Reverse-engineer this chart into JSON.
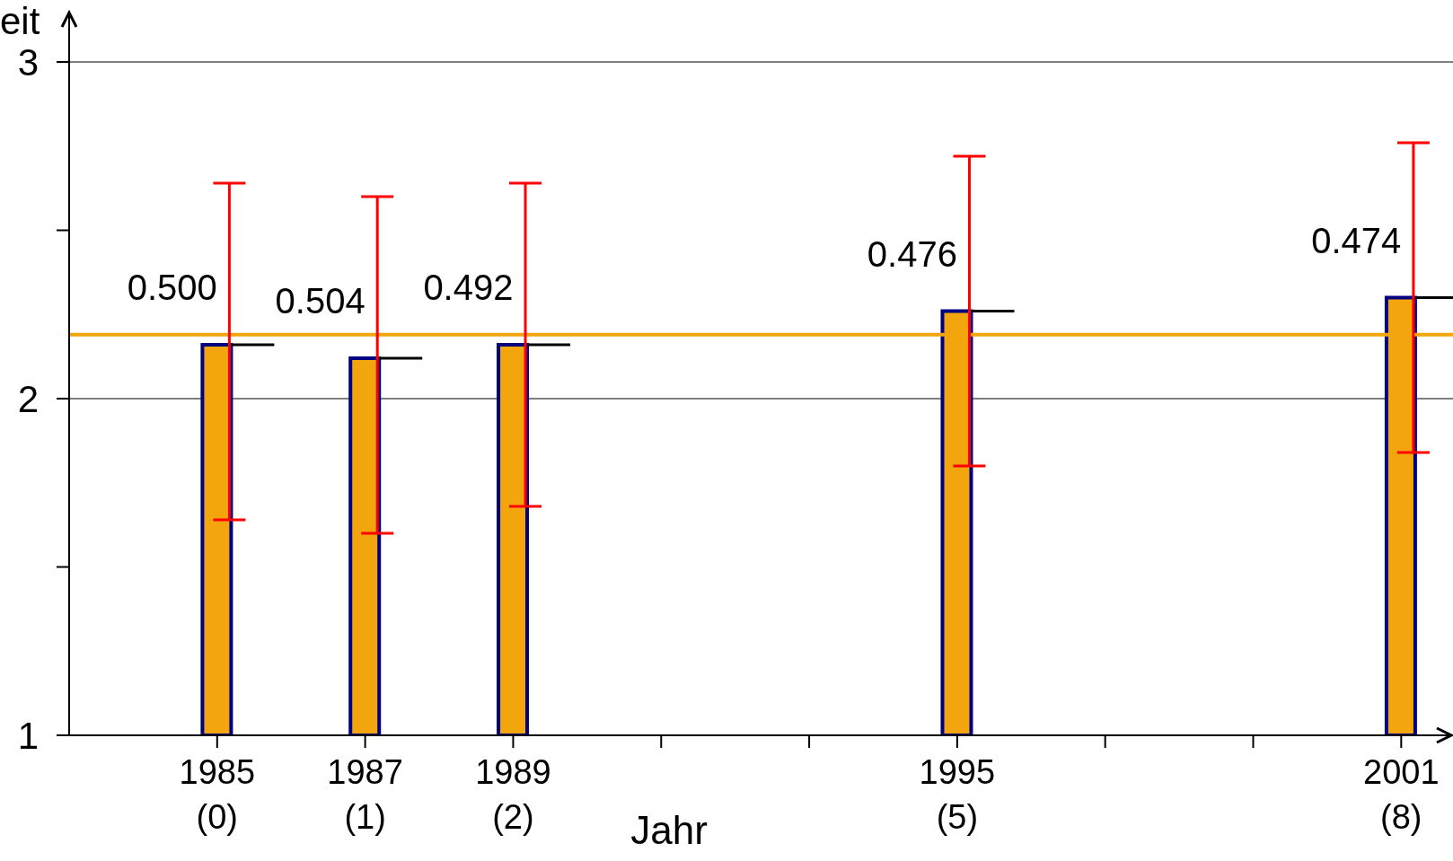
{
  "chart_data": {
    "type": "bar",
    "ylabel": "eit",
    "xlabel": "Jahr",
    "categories": [
      "1985\n(0)",
      "1987\n(1)",
      "1989\n(2)",
      null,
      null,
      "1995\n(5)",
      null,
      null,
      "2001\n(8)"
    ],
    "values": [
      2.16,
      2.12,
      2.16,
      null,
      null,
      2.26,
      null,
      null,
      2.3
    ],
    "errors": [
      [
        1.64,
        2.64
      ],
      [
        1.6,
        2.6
      ],
      [
        1.68,
        2.64
      ],
      null,
      null,
      [
        1.8,
        2.72
      ],
      null,
      null,
      [
        1.84,
        2.76
      ]
    ],
    "color": "#f2a50c",
    "annotations": [
      {
        "text": "0.500",
        "x": "1985\n(0)",
        "y": 2.16
      },
      {
        "text": "0.504",
        "x": "1987\n(1)",
        "y": 2.12
      },
      {
        "text": "0.492",
        "x": "1989\n(2)",
        "y": 2.16
      },
      {
        "text": "0.476",
        "x": "1995\n(5)",
        "y": 2.26
      },
      {
        "text": "0.474",
        "x": "2001\n(8)",
        "y": 2.3
      }
    ],
    "ylim": [
      1,
      3
    ],
    "yticks": [
      1,
      {
        "value": 1.5,
        "label": null
      },
      2,
      {
        "value": 2.5,
        "label": null
      },
      3
    ],
    "ref_lines": [
      {
        "axis": "y",
        "value": 2.19,
        "label": null,
        "color": "#f2a50c"
      }
    ],
    "grid": "y"
  }
}
